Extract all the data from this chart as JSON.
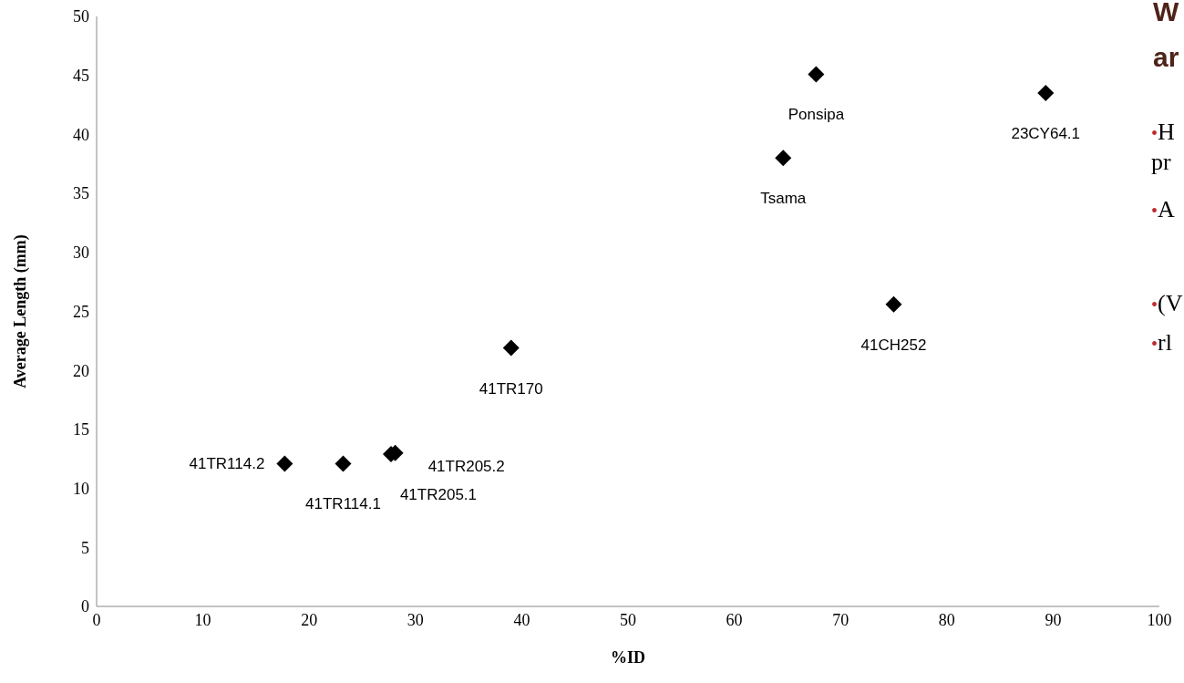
{
  "chart_data": {
    "type": "scatter",
    "xlabel": "%ID",
    "ylabel": "Average Length (mm)",
    "x": [
      17.7,
      23.2,
      27.7,
      28.1,
      39.0,
      64.6,
      67.7,
      75.0,
      89.3
    ],
    "values": [
      12.1,
      12.1,
      12.9,
      13.0,
      21.9,
      38.0,
      45.1,
      25.6,
      43.5
    ],
    "color": "#000000",
    "marker": "diamond",
    "xlim": [
      0,
      100
    ],
    "xticks": [
      0,
      10,
      20,
      30,
      40,
      50,
      60,
      70,
      80,
      90,
      100
    ],
    "ylim": [
      0,
      50
    ],
    "yticks": [
      0,
      5,
      10,
      15,
      20,
      25,
      30,
      35,
      40,
      45,
      50
    ],
    "grid": false,
    "legend": false,
    "annotations": [
      {
        "text": "41TR114.2",
        "x": 17.7,
        "y": 12.1
      },
      {
        "text": "41TR114.1",
        "x": 23.2,
        "y": 12.1
      },
      {
        "text": "41TR205.1",
        "x": 27.7,
        "y": 12.9
      },
      {
        "text": "41TR205.2",
        "x": 28.1,
        "y": 13.0
      },
      {
        "text": "41TR170",
        "x": 39.0,
        "y": 21.9
      },
      {
        "text": "Tsama",
        "x": 64.6,
        "y": 38.0
      },
      {
        "text": "Ponsipa",
        "x": 67.7,
        "y": 45.1
      },
      {
        "text": "41CH252",
        "x": 75.0,
        "y": 25.6
      },
      {
        "text": "23CY64.1",
        "x": 89.3,
        "y": 43.5
      },
      "W",
      "ar",
      "•H",
      "pr",
      "•A",
      "•(V",
      "•rl"
    ]
  }
}
